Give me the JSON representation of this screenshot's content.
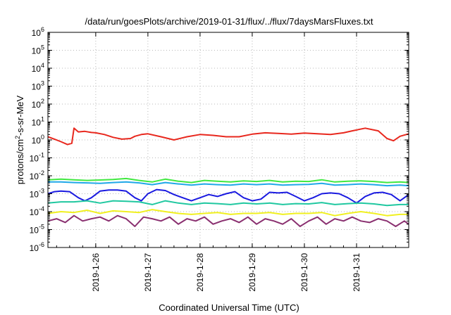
{
  "chart_data": {
    "type": "line",
    "title": "/data/run/goesPlots/archive/2019-01-31/flux/../flux/7daysMarsFluxes.txt",
    "xlabel": "Coordinated Universal Time (UTC)",
    "ylabel_base": "protons/cm",
    "ylabel_sup": "2",
    "ylabel_rest": "-s-sr-MeV",
    "y_scale": "log",
    "xlim": [
      "2019-01-25T02:00",
      "2019-02-01T00:00"
    ],
    "ylim_exp": [
      -6,
      6
    ],
    "grid": true,
    "y_ticks": [
      {
        "base": "10",
        "exp": "-6",
        "value": -6
      },
      {
        "base": "10",
        "exp": "-5",
        "value": -5
      },
      {
        "base": "10",
        "exp": "-4",
        "value": -4
      },
      {
        "base": "10",
        "exp": "-3",
        "value": -3
      },
      {
        "base": "10",
        "exp": "-2",
        "value": -2
      },
      {
        "base": "10",
        "exp": "-1",
        "value": -1
      },
      {
        "base": "10",
        "exp": "0",
        "value": 0
      },
      {
        "base": "10",
        "exp": "1",
        "value": 1
      },
      {
        "base": "10",
        "exp": "2",
        "value": 2
      },
      {
        "base": "10",
        "exp": "3",
        "value": 3
      },
      {
        "base": "10",
        "exp": "4",
        "value": 4
      },
      {
        "base": "10",
        "exp": "5",
        "value": 5
      },
      {
        "base": "10",
        "exp": "6",
        "value": 6
      }
    ],
    "x_ticks": [
      {
        "label": "2019-1-26",
        "date": "2019-01-26T00:00"
      },
      {
        "label": "2019-1-27",
        "date": "2019-01-27T00:00"
      },
      {
        "label": "2019-1-28",
        "date": "2019-01-28T00:00"
      },
      {
        "label": "2019-1-29",
        "date": "2019-01-29T00:00"
      },
      {
        "label": "2019-1-30",
        "date": "2019-01-30T00:00"
      },
      {
        "label": "2019-1-31",
        "date": "2019-01-31T00:00"
      }
    ],
    "series": [
      {
        "color": "#e8281e",
        "x": [
          "2019-01-25T02:00",
          "2019-01-25T05:00",
          "2019-01-25T08:00",
          "2019-01-25T11:00",
          "2019-01-25T13:00",
          "2019-01-25T14:00",
          "2019-01-25T16:00",
          "2019-01-25T19:00",
          "2019-01-25T22:00",
          "2019-01-26T00:00",
          "2019-01-26T04:00",
          "2019-01-26T08:00",
          "2019-01-26T12:00",
          "2019-01-26T16:00",
          "2019-01-26T18:00",
          "2019-01-26T21:00",
          "2019-01-27T00:00",
          "2019-01-27T06:00",
          "2019-01-27T12:00",
          "2019-01-27T18:00",
          "2019-01-28T00:00",
          "2019-01-28T06:00",
          "2019-01-28T12:00",
          "2019-01-28T18:00",
          "2019-01-29T00:00",
          "2019-01-29T06:00",
          "2019-01-29T12:00",
          "2019-01-29T18:00",
          "2019-01-30T00:00",
          "2019-01-30T06:00",
          "2019-01-30T12:00",
          "2019-01-30T18:00",
          "2019-01-30T22:00",
          "2019-01-31T04:00",
          "2019-01-31T10:00",
          "2019-01-31T14:00",
          "2019-01-31T17:00",
          "2019-01-31T20:00",
          "2019-02-01T00:00"
        ],
        "y": [
          1.5,
          1.1,
          0.8,
          0.55,
          0.65,
          4.5,
          2.8,
          3.0,
          2.6,
          2.5,
          2.0,
          1.4,
          1.1,
          1.2,
          1.6,
          2.0,
          2.2,
          1.5,
          1.0,
          1.5,
          2.0,
          1.8,
          1.5,
          1.5,
          2.1,
          2.5,
          2.3,
          2.1,
          2.4,
          2.2,
          2.0,
          2.5,
          3.2,
          4.5,
          3.2,
          1.2,
          0.9,
          1.6,
          2.2
        ]
      },
      {
        "color": "#40e840",
        "x": [
          "2019-01-25T02:00",
          "2019-01-25T08:00",
          "2019-01-25T14:00",
          "2019-01-25T20:00",
          "2019-01-26T02:00",
          "2019-01-26T08:00",
          "2019-01-26T14:00",
          "2019-01-26T20:00",
          "2019-01-27T02:00",
          "2019-01-27T08:00",
          "2019-01-27T14:00",
          "2019-01-27T20:00",
          "2019-01-28T02:00",
          "2019-01-28T08:00",
          "2019-01-28T14:00",
          "2019-01-28T20:00",
          "2019-01-29T02:00",
          "2019-01-29T08:00",
          "2019-01-29T14:00",
          "2019-01-29T20:00",
          "2019-01-30T02:00",
          "2019-01-30T08:00",
          "2019-01-30T14:00",
          "2019-01-30T20:00",
          "2019-01-31T02:00",
          "2019-01-31T08:00",
          "2019-01-31T14:00",
          "2019-01-31T20:00",
          "2019-02-01T00:00"
        ],
        "y": [
          0.006,
          0.0065,
          0.006,
          0.0055,
          0.0058,
          0.0062,
          0.007,
          0.0055,
          0.0045,
          0.0065,
          0.005,
          0.0042,
          0.0055,
          0.005,
          0.0045,
          0.0052,
          0.0048,
          0.0055,
          0.0045,
          0.005,
          0.0048,
          0.006,
          0.0045,
          0.005,
          0.0052,
          0.0048,
          0.0042,
          0.0045,
          0.0042
        ]
      },
      {
        "color": "#20a8e8",
        "x": [
          "2019-01-25T02:00",
          "2019-01-25T08:00",
          "2019-01-25T14:00",
          "2019-01-25T20:00",
          "2019-01-26T02:00",
          "2019-01-26T08:00",
          "2019-01-26T14:00",
          "2019-01-26T20:00",
          "2019-01-27T02:00",
          "2019-01-27T08:00",
          "2019-01-27T14:00",
          "2019-01-27T20:00",
          "2019-01-28T02:00",
          "2019-01-28T08:00",
          "2019-01-28T14:00",
          "2019-01-28T20:00",
          "2019-01-29T02:00",
          "2019-01-29T08:00",
          "2019-01-29T14:00",
          "2019-01-29T20:00",
          "2019-01-30T02:00",
          "2019-01-30T08:00",
          "2019-01-30T14:00",
          "2019-01-30T20:00",
          "2019-01-31T02:00",
          "2019-01-31T08:00",
          "2019-01-31T14:00",
          "2019-01-31T20:00",
          "2019-02-01T00:00"
        ],
        "y": [
          0.0045,
          0.0045,
          0.0042,
          0.004,
          0.0038,
          0.0042,
          0.0045,
          0.004,
          0.0032,
          0.0042,
          0.0035,
          0.003,
          0.0035,
          0.0032,
          0.003,
          0.0035,
          0.0032,
          0.0035,
          0.003,
          0.0032,
          0.0033,
          0.0038,
          0.003,
          0.0032,
          0.0035,
          0.0032,
          0.0028,
          0.003,
          0.0028
        ]
      },
      {
        "color": "#1a1ae0",
        "x": [
          "2019-01-25T02:00",
          "2019-01-25T05:00",
          "2019-01-25T08:00",
          "2019-01-25T12:00",
          "2019-01-25T16:00",
          "2019-01-25T19:00",
          "2019-01-25T22:00",
          "2019-01-26T02:00",
          "2019-01-26T06:00",
          "2019-01-26T10:00",
          "2019-01-26T14:00",
          "2019-01-26T18:00",
          "2019-01-26T21:00",
          "2019-01-27T00:00",
          "2019-01-27T04:00",
          "2019-01-27T08:00",
          "2019-01-27T12:00",
          "2019-01-27T16:00",
          "2019-01-27T20:00",
          "2019-01-28T00:00",
          "2019-01-28T04:00",
          "2019-01-28T08:00",
          "2019-01-28T12:00",
          "2019-01-28T16:00",
          "2019-01-28T20:00",
          "2019-01-29T00:00",
          "2019-01-29T04:00",
          "2019-01-29T08:00",
          "2019-01-29T12:00",
          "2019-01-29T16:00",
          "2019-01-29T20:00",
          "2019-01-30T00:00",
          "2019-01-30T04:00",
          "2019-01-30T08:00",
          "2019-01-30T12:00",
          "2019-01-30T16:00",
          "2019-01-30T20:00",
          "2019-01-31T00:00",
          "2019-01-31T04:00",
          "2019-01-31T08:00",
          "2019-01-31T12:00",
          "2019-01-31T16:00",
          "2019-01-31T20:00",
          "2019-02-01T00:00"
        ],
        "y": [
          0.001,
          0.0013,
          0.0014,
          0.0013,
          0.0006,
          0.0004,
          0.0006,
          0.0014,
          0.0016,
          0.0016,
          0.0014,
          0.0006,
          0.0004,
          0.001,
          0.0017,
          0.0015,
          0.0009,
          0.0006,
          0.0004,
          0.0006,
          0.0009,
          0.0007,
          0.001,
          0.0013,
          0.0006,
          0.0004,
          0.0005,
          0.0012,
          0.0011,
          0.0012,
          0.0007,
          0.0004,
          0.0006,
          0.001,
          0.0011,
          0.001,
          0.0006,
          0.0003,
          0.0007,
          0.0011,
          0.0012,
          0.0009,
          0.0004,
          0.0009
        ]
      },
      {
        "color": "#20c8a0",
        "x": [
          "2019-01-25T02:00",
          "2019-01-25T08:00",
          "2019-01-25T14:00",
          "2019-01-25T20:00",
          "2019-01-26T02:00",
          "2019-01-26T08:00",
          "2019-01-26T14:00",
          "2019-01-26T20:00",
          "2019-01-27T02:00",
          "2019-01-27T08:00",
          "2019-01-27T14:00",
          "2019-01-27T20:00",
          "2019-01-28T02:00",
          "2019-01-28T08:00",
          "2019-01-28T14:00",
          "2019-01-28T20:00",
          "2019-01-29T02:00",
          "2019-01-29T08:00",
          "2019-01-29T14:00",
          "2019-01-29T20:00",
          "2019-01-30T02:00",
          "2019-01-30T08:00",
          "2019-01-30T14:00",
          "2019-01-30T20:00",
          "2019-01-31T02:00",
          "2019-01-31T08:00",
          "2019-01-31T14:00",
          "2019-01-31T20:00",
          "2019-02-01T00:00"
        ],
        "y": [
          0.0003,
          0.00035,
          0.00035,
          0.0004,
          0.0003,
          0.0004,
          0.00038,
          0.00035,
          0.00025,
          0.0004,
          0.0003,
          0.00025,
          0.0003,
          0.00028,
          0.00025,
          0.0003,
          0.00027,
          0.0003,
          0.00025,
          0.00028,
          0.00027,
          0.00032,
          0.00025,
          0.00028,
          0.0003,
          0.00027,
          0.00022,
          0.00025,
          0.00025
        ]
      },
      {
        "color": "#f0f020",
        "x": [
          "2019-01-25T02:00",
          "2019-01-25T08:00",
          "2019-01-25T14:00",
          "2019-01-25T20:00",
          "2019-01-26T02:00",
          "2019-01-26T08:00",
          "2019-01-26T14:00",
          "2019-01-26T20:00",
          "2019-01-27T02:00",
          "2019-01-27T08:00",
          "2019-01-27T14:00",
          "2019-01-27T20:00",
          "2019-01-28T02:00",
          "2019-01-28T08:00",
          "2019-01-28T14:00",
          "2019-01-28T20:00",
          "2019-01-29T02:00",
          "2019-01-29T08:00",
          "2019-01-29T14:00",
          "2019-01-29T20:00",
          "2019-01-30T02:00",
          "2019-01-30T08:00",
          "2019-01-30T14:00",
          "2019-01-30T20:00",
          "2019-01-31T02:00",
          "2019-01-31T08:00",
          "2019-01-31T14:00",
          "2019-01-31T20:00",
          "2019-02-01T00:00"
        ],
        "y": [
          8e-05,
          0.0001,
          9e-05,
          0.00012,
          8e-05,
          0.00011,
          0.0001,
          9e-05,
          0.00013,
          0.0001,
          8e-05,
          7e-05,
          8e-05,
          9e-05,
          7e-05,
          8e-05,
          8e-05,
          9e-05,
          7e-05,
          8e-05,
          8e-05,
          9e-05,
          6e-05,
          8e-05,
          0.0001,
          8e-05,
          6e-05,
          7e-05,
          7e-05
        ]
      },
      {
        "color": "#8a3070",
        "x": [
          "2019-01-25T02:00",
          "2019-01-25T06:00",
          "2019-01-25T10:00",
          "2019-01-25T14:00",
          "2019-01-25T18:00",
          "2019-01-25T22:00",
          "2019-01-26T02:00",
          "2019-01-26T06:00",
          "2019-01-26T10:00",
          "2019-01-26T14:00",
          "2019-01-26T18:00",
          "2019-01-26T22:00",
          "2019-01-27T02:00",
          "2019-01-27T06:00",
          "2019-01-27T10:00",
          "2019-01-27T14:00",
          "2019-01-27T18:00",
          "2019-01-27T22:00",
          "2019-01-28T02:00",
          "2019-01-28T06:00",
          "2019-01-28T10:00",
          "2019-01-28T14:00",
          "2019-01-28T18:00",
          "2019-01-28T22:00",
          "2019-01-29T02:00",
          "2019-01-29T06:00",
          "2019-01-29T10:00",
          "2019-01-29T14:00",
          "2019-01-29T18:00",
          "2019-01-29T22:00",
          "2019-01-30T02:00",
          "2019-01-30T06:00",
          "2019-01-30T10:00",
          "2019-01-30T14:00",
          "2019-01-30T18:00",
          "2019-01-30T22:00",
          "2019-01-31T02:00",
          "2019-01-31T06:00",
          "2019-01-31T10:00",
          "2019-01-31T14:00",
          "2019-01-31T18:00",
          "2019-01-31T22:00",
          "2019-02-01T00:00"
        ],
        "y": [
          3e-05,
          4e-05,
          2.5e-05,
          6e-05,
          3e-05,
          4e-05,
          5e-05,
          3e-05,
          6e-05,
          4e-05,
          1.5e-05,
          5e-05,
          4e-05,
          3e-05,
          5e-05,
          2e-05,
          4e-05,
          3e-05,
          5e-05,
          2e-05,
          3e-05,
          4e-05,
          2.5e-05,
          5e-05,
          2e-05,
          4e-05,
          3e-05,
          2e-05,
          4e-05,
          1.5e-05,
          3e-05,
          5e-05,
          2e-05,
          4e-05,
          3e-05,
          5e-05,
          3e-05,
          2.5e-05,
          4e-05,
          3e-05,
          1.5e-05,
          3e-05,
          2e-05
        ]
      }
    ]
  }
}
